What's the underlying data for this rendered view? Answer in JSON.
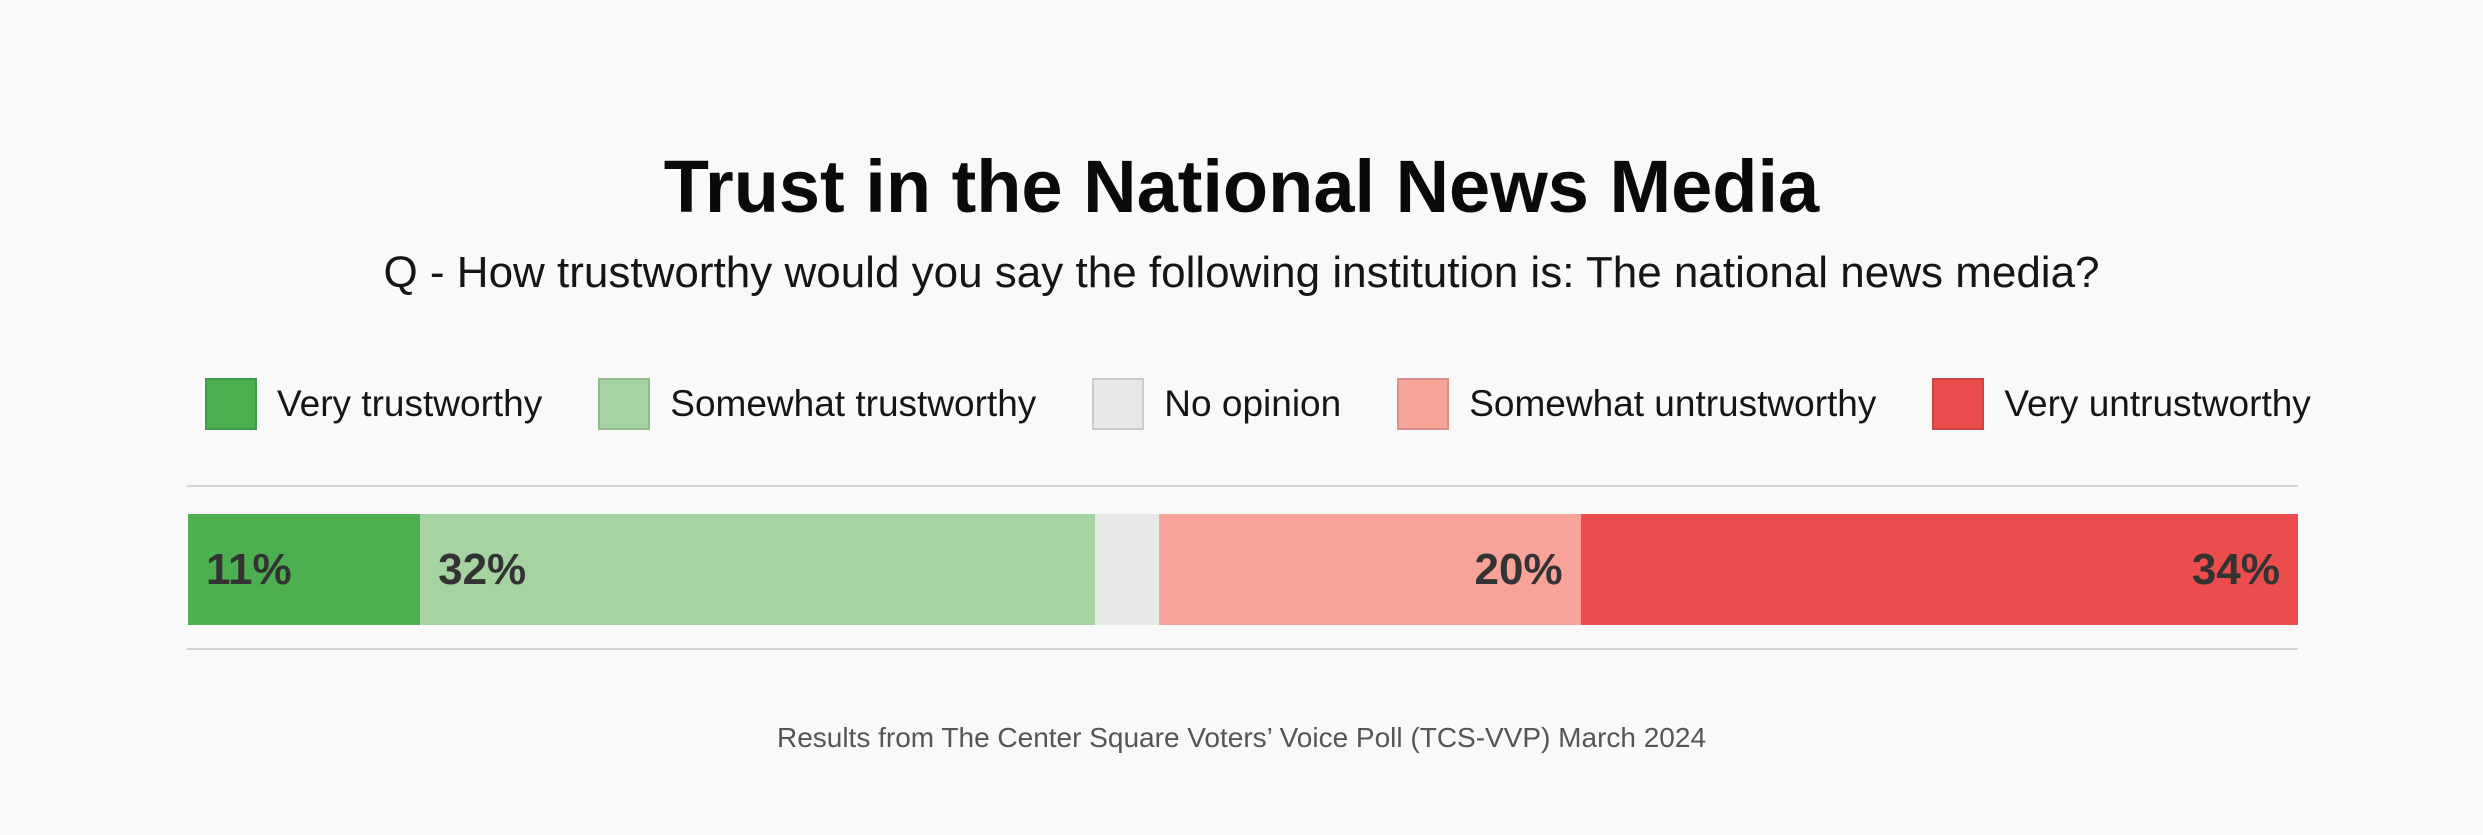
{
  "chart_data": {
    "type": "bar",
    "orientation": "horizontal-stacked",
    "title": "Trust in the National News Media",
    "subtitle": "Q - How trustworthy would you say the following institution is: The national news media?",
    "series": [
      {
        "name": "Very trustworthy",
        "value": 11,
        "label": "11%",
        "color": "#4caf50",
        "label_align": "left"
      },
      {
        "name": "Somewhat trustworthy",
        "value": 32,
        "label": "32%",
        "color": "#a5d3a1",
        "label_align": "left"
      },
      {
        "name": "No opinion",
        "value": 3,
        "label": "",
        "color": "#e8e8e8",
        "label_align": "left"
      },
      {
        "name": "Somewhat untrustworthy",
        "value": 20,
        "label": "20%",
        "color": "#f8a39a",
        "label_align": "right"
      },
      {
        "name": "Very untrustworthy",
        "value": 34,
        "label": "34%",
        "color": "#ea4d4b",
        "label_align": "right"
      }
    ],
    "legend_position": "top",
    "source": "Results from The Center Square Voters’ Voice Poll (TCS-VVP) March 2024"
  }
}
